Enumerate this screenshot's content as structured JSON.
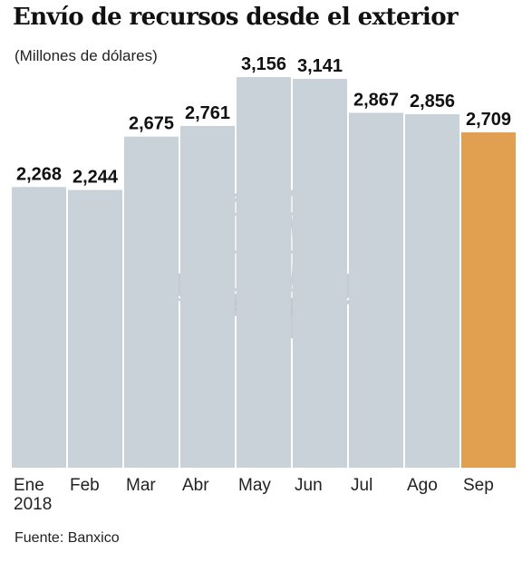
{
  "header": {
    "title": "Envío de recursos desde el exterior",
    "subtitle": "(Millones de dólares)"
  },
  "footer": {
    "source": "Fuente: Banxico"
  },
  "colors": {
    "bar": "#c9d1d9",
    "highlight": "#e0a04f",
    "watermark": "#bfc6cc"
  },
  "watermark": {
    "icon": "eagle-globe-logo"
  },
  "chart_data": {
    "type": "bar",
    "categories": [
      "Ene",
      "Feb",
      "Mar",
      "Abr",
      "May",
      "Jun",
      "Jul",
      "Ago",
      "Sep"
    ],
    "category_sublabels": [
      "2018",
      "",
      "",
      "",
      "",
      "",
      "",
      "",
      ""
    ],
    "values": [
      2268,
      2244,
      2675,
      2761,
      3156,
      3141,
      2867,
      2856,
      2709
    ],
    "value_labels": [
      "2,268",
      "2,244",
      "2,675",
      "2,761",
      "3,156",
      "3,141",
      "2,867",
      "2,856",
      "2,709"
    ],
    "highlight_index": 8,
    "title": "Envío de recursos desde el exterior",
    "subtitle": "(Millones de dólares)",
    "xlabel": "",
    "ylabel": "",
    "grid": false,
    "legend": "none"
  }
}
